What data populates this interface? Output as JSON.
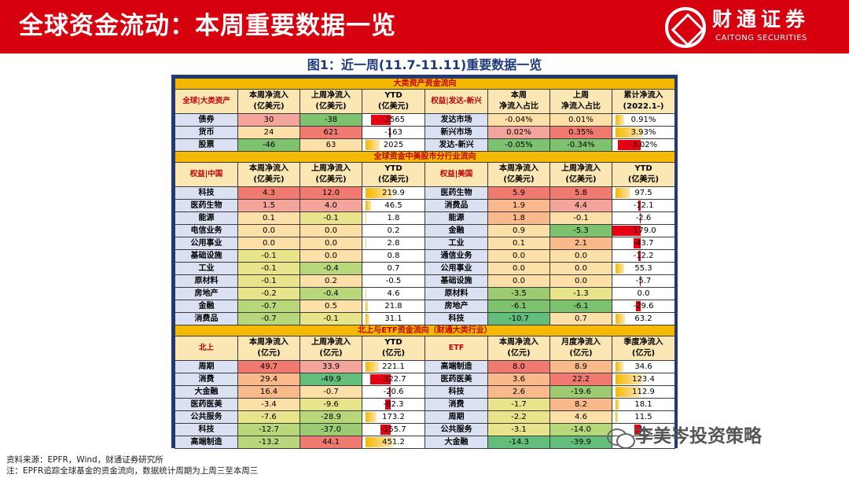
{
  "header": {
    "title": "全球资金流动：本周重要数据一览",
    "brand_cn": "财通证券",
    "brand_en": "CAITONG SECURITIES"
  },
  "figure_title": "图1：近一周(11.7-11.11)重要数据一览",
  "sections": [
    {
      "title": "大类资产资金流向",
      "left_headers": [
        "全球|大类资产",
        "本周净流入\n(亿美元)",
        "上周净流入\n(亿美元)",
        "YTD\n(亿美元)"
      ],
      "right_headers": [
        "权益|发达-新兴",
        "本周\n净流入占比",
        "上周\n净流入占比",
        "累计净流入\n(2022.1-)"
      ],
      "rows": [
        {
          "l": [
            "债券",
            "30",
            "-38",
            "-2565"
          ],
          "r": [
            "发达市场",
            "-0.04%",
            "0.01%",
            "0.91%"
          ],
          "lc": [
            "#f4a49a",
            "#7dc36f"
          ],
          "rc": [
            "#fce0a7",
            "#fce0a7"
          ],
          "ly": -0.7,
          "ry": 0.3
        },
        {
          "l": [
            "货币",
            "24",
            "621",
            "-163"
          ],
          "r": [
            "新兴市场",
            "0.02%",
            "0.35%",
            "3.93%"
          ],
          "lc": [
            "#fce0a7",
            "#f07a70"
          ],
          "rc": [
            "#f4a49a",
            "#f07a70"
          ],
          "ly": -0.05,
          "ry": 1
        },
        {
          "l": [
            "股票",
            "-46",
            "63",
            "2025"
          ],
          "r": [
            "发达-新兴",
            "-0.05%",
            "-0.34%",
            "-3.02%"
          ],
          "lc": [
            "#7dc36f",
            "#fce0a7"
          ],
          "rc": [
            "#7dc36f",
            "#7dc36f"
          ],
          "ly": 0.5,
          "ry": -0.8
        }
      ]
    },
    {
      "title": "全球资金中美股市分行业流向",
      "left_headers": [
        "权益|中国",
        "本周净流入\n(亿美元)",
        "上周净流入\n(亿美元)",
        "YTD\n(亿美元)"
      ],
      "right_headers": [
        "权益|美国",
        "本周净流入\n(亿美元)",
        "上周净流入\n(亿美元)",
        "YTD\n(亿美元)"
      ],
      "rows": [
        {
          "l": [
            "科技",
            "4.3",
            "12.0",
            "219.9"
          ],
          "r": [
            "医药生物",
            "5.9",
            "5.8",
            "97.5"
          ],
          "lc": [
            "#f07a70",
            "#f07a70"
          ],
          "rc": [
            "#f07a70",
            "#f07a70"
          ],
          "ly": 1,
          "ry": 0.55
        },
        {
          "l": [
            "医药生物",
            "1.5",
            "4.0",
            "46.5"
          ],
          "r": [
            "消费品",
            "1.9",
            "4.4",
            "-12.1"
          ],
          "lc": [
            "#f4a49a",
            "#f4a49a"
          ],
          "rc": [
            "#f9b98a",
            "#f4a49a"
          ],
          "ly": 0.2,
          "ry": -0.07
        },
        {
          "l": [
            "能源",
            "0.1",
            "-0.1",
            "1.8"
          ],
          "r": [
            "能源",
            "1.8",
            "-0.1",
            "-2.6"
          ],
          "lc": [
            "#fce0a7",
            "#e8e48c"
          ],
          "rc": [
            "#f9b98a",
            "#fce0a7"
          ],
          "ly": 0.01,
          "ry": -0.01
        },
        {
          "l": [
            "电信业务",
            "0.0",
            "0.0",
            "0.2"
          ],
          "r": [
            "金融",
            "0.9",
            "-5.3",
            "-179.0"
          ],
          "lc": [
            "#fce0a7",
            "#fce0a7"
          ],
          "rc": [
            "#fce0a7",
            "#7dc36f"
          ],
          "ly": 0,
          "ry": -1
        },
        {
          "l": [
            "公用事业",
            "0.0",
            "0.0",
            "2.8"
          ],
          "r": [
            "工业",
            "0.1",
            "2.1",
            "-43.7"
          ],
          "lc": [
            "#fce0a7",
            "#fce0a7"
          ],
          "rc": [
            "#fce0a7",
            "#f9b98a"
          ],
          "ly": 0.01,
          "ry": -0.24
        },
        {
          "l": [
            "基础设施",
            "-0.1",
            "0.0",
            "0.8"
          ],
          "r": [
            "通信业务",
            "0.0",
            "0.0",
            "-12.2"
          ],
          "lc": [
            "#e8e48c",
            "#fce0a7"
          ],
          "rc": [
            "#fce0a7",
            "#fce0a7"
          ],
          "ly": 0,
          "ry": -0.07
        },
        {
          "l": [
            "工业",
            "-0.1",
            "-0.4",
            "0.7"
          ],
          "r": [
            "公用事业",
            "0.0",
            "0.0",
            "55.3"
          ],
          "lc": [
            "#e8e48c",
            "#b8d67a"
          ],
          "rc": [
            "#fce0a7",
            "#fce0a7"
          ],
          "ly": 0,
          "ry": 0.31
        },
        {
          "l": [
            "原材料",
            "-0.1",
            "0.2",
            "-0.5"
          ],
          "r": [
            "基础设施",
            "0.0",
            "0.0",
            "-5.7"
          ],
          "lc": [
            "#e8e48c",
            "#fce0a7"
          ],
          "rc": [
            "#fce0a7",
            "#fce0a7"
          ],
          "ly": 0,
          "ry": -0.03
        },
        {
          "l": [
            "房地产",
            "-0.2",
            "-0.4",
            "4.6"
          ],
          "r": [
            "原材料",
            "-3.5",
            "-1.3",
            "0.0"
          ],
          "lc": [
            "#e8e48c",
            "#b8d67a"
          ],
          "rc": [
            "#9ccc72",
            "#e8e48c"
          ],
          "ly": 0.02,
          "ry": 0
        },
        {
          "l": [
            "金融",
            "-0.7",
            "0.5",
            "21.8"
          ],
          "r": [
            "房地产",
            "-6.1",
            "-6.1",
            "-29.6"
          ],
          "lc": [
            "#b8d67a",
            "#fce0a7"
          ],
          "rc": [
            "#7dc36f",
            "#7dc36f"
          ],
          "ly": 0.1,
          "ry": -0.17
        },
        {
          "l": [
            "消费品",
            "-0.7",
            "-0.1",
            "31.1"
          ],
          "r": [
            "科技",
            "-10.7",
            "0.7",
            "63.2"
          ],
          "lc": [
            "#b8d67a",
            "#e8e48c"
          ],
          "rc": [
            "#63be7b",
            "#fce0a7"
          ],
          "ly": 0.14,
          "ry": 0.35
        }
      ]
    },
    {
      "title": "北上与ETF资金流向（财通大类行业）",
      "left_headers": [
        "北上",
        "本周净流入\n(亿元)",
        "上周净流入\n(亿元)",
        "YTD\n(亿元)"
      ],
      "right_headers": [
        "ETF",
        "本周净流入\n(亿元)",
        "月度净流入\n(亿元)",
        "季度净流入\n(亿元)"
      ],
      "rows": [
        {
          "l": [
            "周期",
            "49.7",
            "33.9",
            "221.1"
          ],
          "r": [
            "高端制造",
            "8.0",
            "8.9",
            "34.6"
          ],
          "lc": [
            "#f07a70",
            "#f4a49a"
          ],
          "rc": [
            "#f07a70",
            "#f9b98a"
          ],
          "ly": 0.49,
          "ry": 0.27
        },
        {
          "l": [
            "消费",
            "29.4",
            "-49.9",
            "-322.7"
          ],
          "r": [
            "医药医美",
            "3.6",
            "22.2",
            "123.4"
          ],
          "lc": [
            "#f9b98a",
            "#63be7b"
          ],
          "rc": [
            "#f9b98a",
            "#f07a70"
          ],
          "ly": -0.72,
          "ry": 0.97
        },
        {
          "l": [
            "大金融",
            "16.4",
            "-0.7",
            "-20.6"
          ],
          "r": [
            "科技",
            "2.6",
            "-19.6",
            "112.9"
          ],
          "lc": [
            "#f9b98a",
            "#fce0a7"
          ],
          "rc": [
            "#f9b98a",
            "#9ccc72"
          ],
          "ly": -0.05,
          "ry": 0.89
        },
        {
          "l": [
            "医药医美",
            "-3.4",
            "-9.6",
            "-82.3"
          ],
          "r": [
            "消费",
            "-1.7",
            "8.2",
            "18.1"
          ],
          "lc": [
            "#fce0a7",
            "#e8e48c"
          ],
          "rc": [
            "#e8e48c",
            "#f9b98a"
          ],
          "ly": -0.18,
          "ry": 0.14
        },
        {
          "l": [
            "公共服务",
            "-7.6",
            "-28.9",
            "173.2"
          ],
          "r": [
            "周期",
            "-2.2",
            "4.6",
            "11.5"
          ],
          "lc": [
            "#e8e48c",
            "#b8d67a"
          ],
          "rc": [
            "#e8e48c",
            "#fce0a7"
          ],
          "ly": 0.39,
          "ry": 0.09
        },
        {
          "l": [
            "科技",
            "-12.7",
            "-37.0",
            "-155.7"
          ],
          "r": [
            "公共服务",
            "-3.1",
            "-14.0",
            "-1..."
          ],
          "lc": [
            "#b8d67a",
            "#9ccc72"
          ],
          "rc": [
            "#e8e48c",
            "#b8d67a"
          ],
          "ly": -0.35,
          "ry": -0.2
        },
        {
          "l": [
            "高端制造",
            "-13.2",
            "44.1",
            "451.2"
          ],
          "r": [
            "大金融",
            "-14.3",
            "-39.9",
            ""
          ],
          "lc": [
            "#b8d67a",
            "#f07a70"
          ],
          "rc": [
            "#63be7b",
            "#63be7b"
          ],
          "ly": 1,
          "ry": 0
        }
      ]
    }
  ],
  "colors": {
    "header_red": "#d7000f",
    "panel_navy": "#1e3a7a",
    "section_gold": "#f5b800",
    "header_cell": "#fbe7b4",
    "label_blue": "#d9e1f2",
    "neg_bar": "#e60012",
    "pos_bar": "#f5b800"
  },
  "source_lines": [
    "资料来源：EPFR，Wind，财通证券研究所",
    "注：EPFR追踪全球基金的资金流向，数据统计周期为上周三至本周三"
  ],
  "watermark": "李美岑投资策略"
}
